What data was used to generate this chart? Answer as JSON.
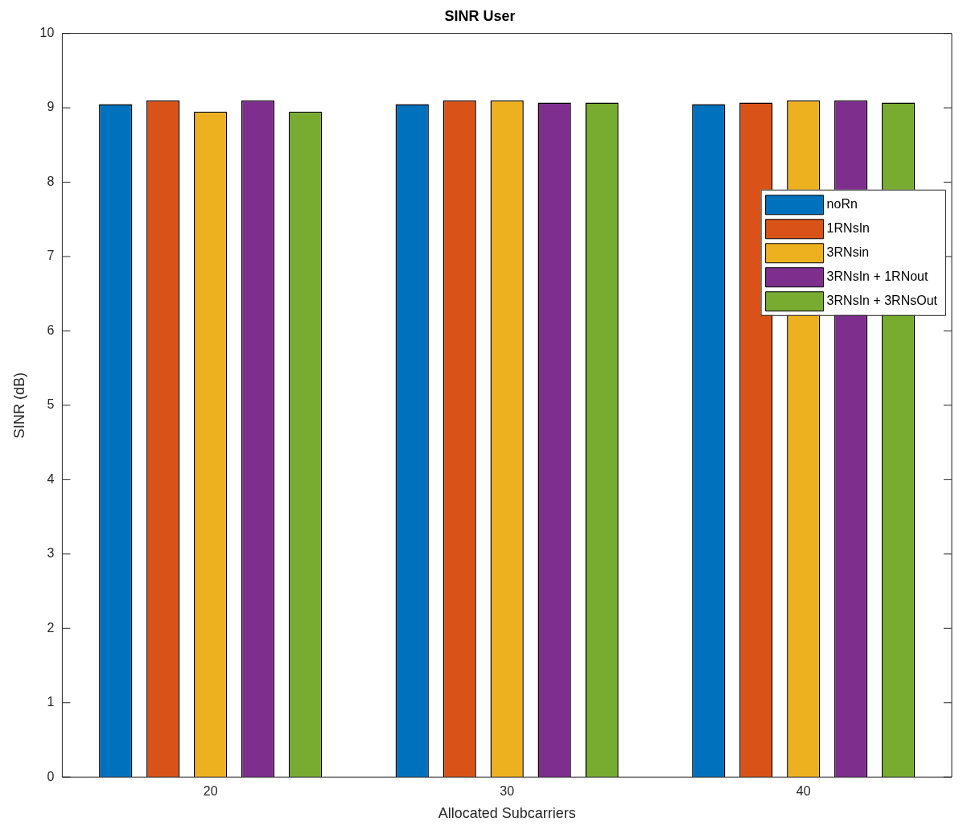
{
  "chart_data": {
    "type": "bar",
    "title": "SINR User",
    "xlabel": "Allocated Subcarriers",
    "ylabel": "SINR (dB)",
    "categories": [
      "20",
      "30",
      "40"
    ],
    "series": [
      {
        "name": "noRn",
        "color": "#0072bd",
        "values": [
          9.05,
          9.05,
          9.05
        ]
      },
      {
        "name": "1RNsIn",
        "color": "#d95319",
        "values": [
          9.1,
          9.1,
          9.07
        ]
      },
      {
        "name": "3RNsin",
        "color": "#edb120",
        "values": [
          8.95,
          9.1,
          9.1
        ]
      },
      {
        "name": "3RNsIn + 1RNout",
        "color": "#7e2f8e",
        "values": [
          9.1,
          9.07,
          9.1
        ]
      },
      {
        "name": "3RNsIn + 3RNsOut",
        "color": "#77ac30",
        "values": [
          8.95,
          9.07,
          9.07
        ]
      }
    ],
    "ylim": [
      0,
      10
    ],
    "yticks": [
      0,
      1,
      2,
      3,
      4,
      5,
      6,
      7,
      8,
      9,
      10
    ],
    "grid": false,
    "legend": "right"
  }
}
